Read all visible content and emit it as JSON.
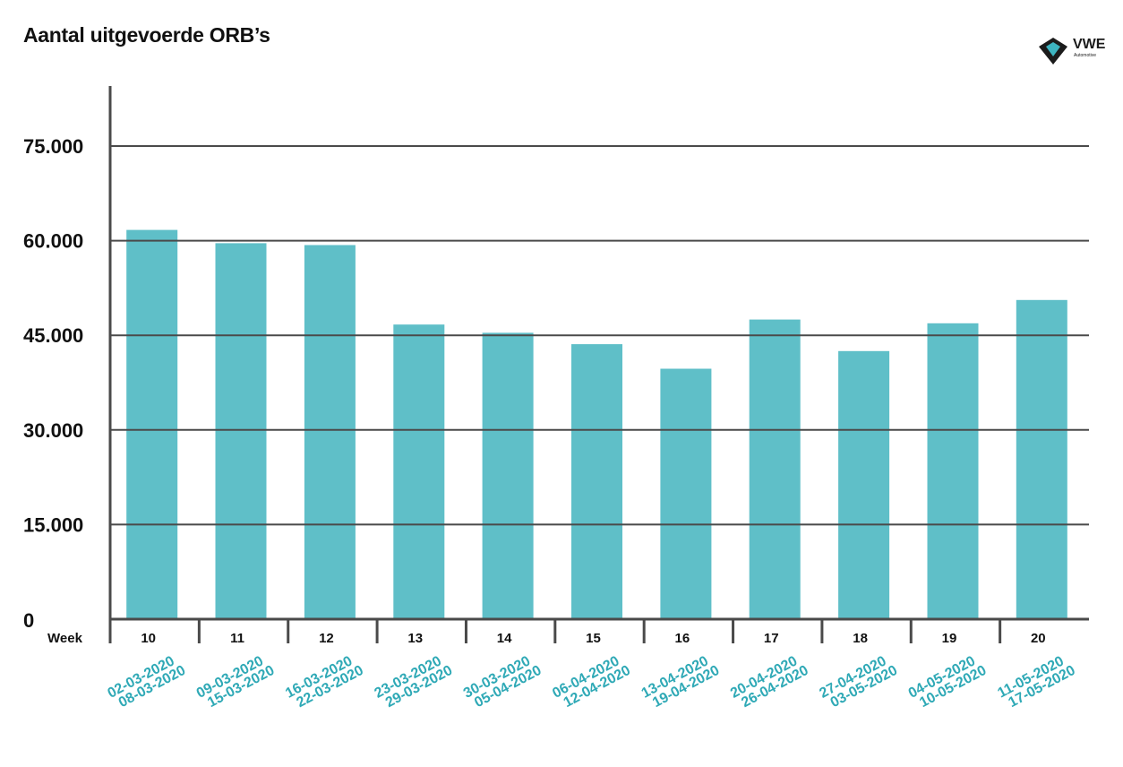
{
  "chart_data": {
    "type": "bar",
    "title": "Aantal uitgevoerde ORB’s",
    "xlabel": "Week",
    "ylabel": "",
    "ylim": [
      0,
      85000
    ],
    "y_ticks": [
      0,
      15000,
      30000,
      45000,
      60000,
      75000
    ],
    "y_tick_labels": [
      "0",
      "15.000",
      "30.000",
      "45.000",
      "60.000",
      "75.000"
    ],
    "categories": [
      "10",
      "11",
      "12",
      "13",
      "14",
      "15",
      "16",
      "17",
      "18",
      "19",
      "20"
    ],
    "date_ranges": [
      [
        "02-03-2020",
        "08-03-2020"
      ],
      [
        "09-03-2020",
        "15-03-2020"
      ],
      [
        "16-03-2020",
        "22-03-2020"
      ],
      [
        "23-03-2020",
        "29-03-2020"
      ],
      [
        "30-03-2020",
        "05-04-2020"
      ],
      [
        "06-04-2020",
        "12-04-2020"
      ],
      [
        "13-04-2020",
        "19-04-2020"
      ],
      [
        "20-04-2020",
        "26-04-2020"
      ],
      [
        "27-04-2020",
        "03-05-2020"
      ],
      [
        "04-05-2020",
        "10-05-2020"
      ],
      [
        "11-05-2020",
        "17-05-2020"
      ]
    ],
    "values": [
      61700,
      59600,
      59300,
      46700,
      45400,
      43600,
      39700,
      47500,
      42500,
      46900,
      50600
    ],
    "grid": true,
    "legend": "none"
  },
  "colors": {
    "bar": "#5fbfc8",
    "date_label": "#2fa9b6",
    "grid": "#4a4a4a",
    "axis": "#4a4a4a",
    "text": "#111111",
    "logo_dark": "#1b1b1b",
    "logo_accent": "#3db4c0"
  },
  "logo": {
    "text": "VWE",
    "subtext": "Automotive"
  }
}
